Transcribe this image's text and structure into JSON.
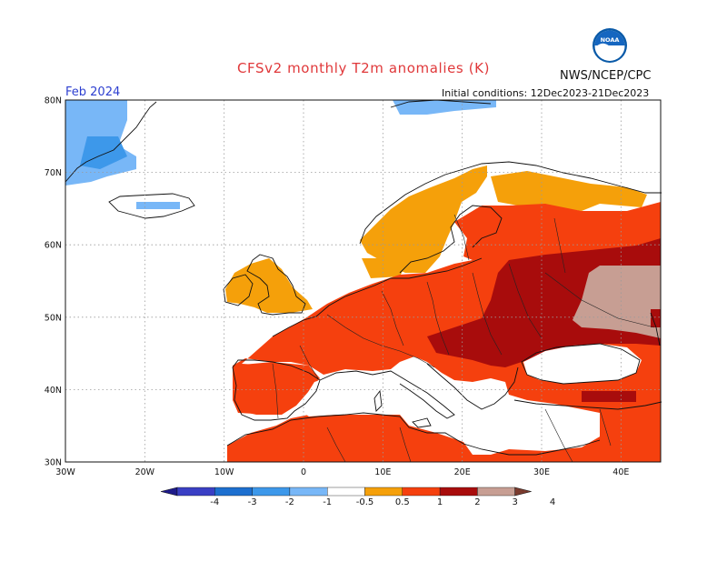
{
  "title": "CFSv2 monthly T2m anomalies (K)",
  "issuer": "NWS/NCEP/CPC",
  "logo_text": "NOAA",
  "period": "Feb 2024",
  "initial_conditions": "Initial conditions: 12Dec2023-21Dec2023",
  "lat_labels": [
    "80N",
    "70N",
    "60N",
    "50N",
    "40N",
    "30N"
  ],
  "lon_labels": [
    "30W",
    "20W",
    "10W",
    "0",
    "10E",
    "20E",
    "30E",
    "40E"
  ],
  "colorbar": {
    "labels": [
      "-4",
      "-3",
      "-2",
      "-1",
      "-0.5",
      "0.5",
      "1",
      "2",
      "3",
      "4"
    ],
    "colors": [
      "#1e1b8a",
      "#3a3fc4",
      "#1d6fcf",
      "#3d98ea",
      "#78b7f7",
      "#ffffff",
      "#f5a00a",
      "#f5400e",
      "#a80c0c",
      "#c79e93",
      "#7a3b2e"
    ]
  },
  "colors": {
    "land_neutral": "#ffffff",
    "sea": "#ffffff",
    "gridline": "#9a9a9a",
    "coast": "#111111"
  }
}
